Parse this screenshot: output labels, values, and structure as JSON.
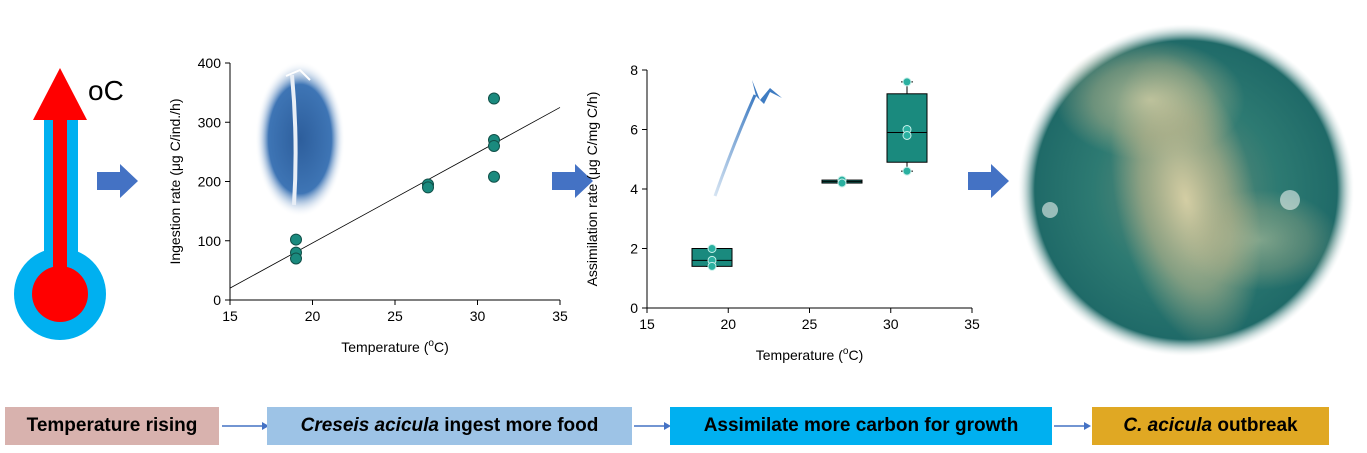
{
  "thermo_unit": "oC",
  "flow": [
    {
      "plain": "Temperature rising",
      "color": "#d8b2ae"
    },
    {
      "italic": "Creseis acicula",
      "rest": " ingest more food",
      "color": "#9dc3e6"
    },
    {
      "plain": "Assimilate more carbon for growth",
      "color": "#00b0f0"
    },
    {
      "italic": "C. acicula",
      "rest": " outbreak",
      "color": "#e0a823"
    }
  ],
  "chart_data": [
    {
      "type": "scatter",
      "ylabel": "Ingestion rate (μg C/ind./h)",
      "xlabel": "Temperature (oC)",
      "xlim": [
        15,
        35
      ],
      "ylim": [
        0,
        400
      ],
      "xticks": [
        15,
        20,
        25,
        30,
        35
      ],
      "yticks": [
        0,
        100,
        200,
        300,
        400
      ],
      "points": [
        [
          19,
          102
        ],
        [
          19,
          80
        ],
        [
          19,
          70
        ],
        [
          27,
          195
        ],
        [
          27,
          190
        ],
        [
          31,
          340
        ],
        [
          31,
          270
        ],
        [
          31,
          260
        ],
        [
          31,
          208
        ]
      ],
      "trendline": [
        [
          15,
          20
        ],
        [
          35,
          325
        ]
      ],
      "point_color": "#1a8a7e"
    },
    {
      "type": "box",
      "ylabel": "Assimilation rate (μg C/mg C/h)",
      "xlabel": "Temperature (oC)",
      "xlim": [
        15,
        35
      ],
      "ylim": [
        0,
        8
      ],
      "xticks": [
        15,
        20,
        25,
        30,
        35
      ],
      "yticks": [
        0,
        2,
        4,
        6,
        8
      ],
      "boxes": [
        {
          "x": 19,
          "min": 1.4,
          "q1": 1.4,
          "median": 1.6,
          "q3": 2.0,
          "max": 2.0,
          "points": [
            2.0,
            1.6,
            1.4
          ]
        },
        {
          "x": 27,
          "min": 4.2,
          "q1": 4.2,
          "median": 4.25,
          "q3": 4.3,
          "max": 4.3,
          "points": [
            4.3,
            4.2
          ]
        },
        {
          "x": 31,
          "min": 4.6,
          "q1": 4.9,
          "median": 5.9,
          "q3": 7.2,
          "max": 7.6,
          "points": [
            7.6,
            6.0,
            5.8,
            4.6
          ]
        }
      ],
      "box_color": "#1a8a7e"
    }
  ]
}
